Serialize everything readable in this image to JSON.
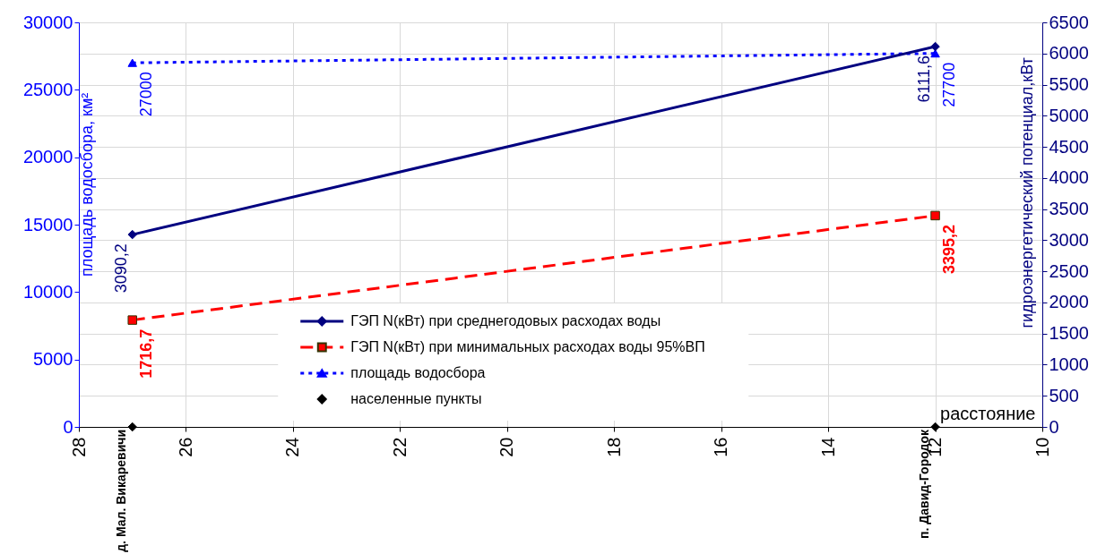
{
  "chart_data": {
    "type": "line",
    "xlabel": "расстояние",
    "ylabel": "площадь водосбора, км²",
    "y2label": "гидроэнергетический потенциал,кВт",
    "xlim": [
      28,
      10
    ],
    "xticks": [
      28,
      26,
      24,
      22,
      20,
      18,
      16,
      14,
      12,
      10
    ],
    "ylim": [
      0,
      30000
    ],
    "yticks": [
      0,
      5000,
      10000,
      15000,
      20000,
      25000,
      30000
    ],
    "y2lim": [
      0,
      6500
    ],
    "y2ticks": [
      0,
      500,
      1000,
      1500,
      2000,
      2500,
      3000,
      3500,
      4000,
      4500,
      5000,
      5500,
      6000,
      6500
    ],
    "grid": true,
    "legend": "bottom",
    "x": [
      27,
      12
    ],
    "series": [
      {
        "name": "ГЭП N(кВт) при среднегодовых расходах воды",
        "color": "#000080",
        "axis": "y2",
        "marker": "diamond",
        "line_style": "solid",
        "values": [
          3090.2,
          6111.6
        ],
        "value_labels": [
          "3090,2",
          "6111,6"
        ]
      },
      {
        "name": "ГЭП N(кВт) при минимальных расходах воды 95%ВП",
        "color": "#ff0000",
        "axis": "y2",
        "marker": "square",
        "line_style": "dashed",
        "values": [
          1716.7,
          3395.2
        ],
        "value_labels": [
          "1716,7",
          "3395,2"
        ]
      },
      {
        "name": "площадь водосбора",
        "color": "#0000ff",
        "axis": "y",
        "marker": "triangle",
        "line_style": "dotted",
        "values": [
          27000,
          27700
        ],
        "value_labels": [
          "27000",
          "27700"
        ]
      },
      {
        "name": "населенные пункты",
        "color": "#000000",
        "axis": "y",
        "type": "scatter",
        "marker": "diamond",
        "values": [
          0,
          0
        ],
        "value_labels": [
          "д. Мал. Викаревичи",
          "п. Давид-Городок"
        ]
      }
    ]
  }
}
